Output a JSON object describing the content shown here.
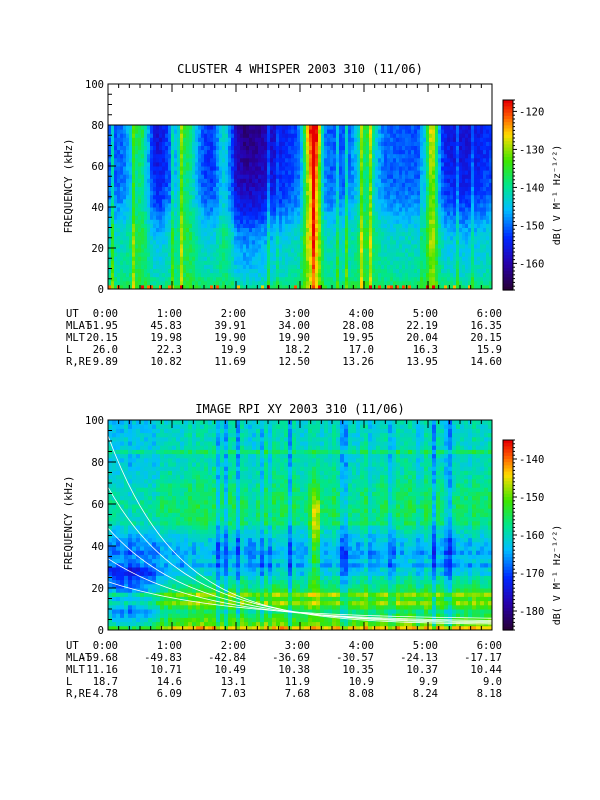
{
  "chart_data": [
    {
      "type": "heatmap",
      "title": "CLUSTER 4 WHISPER 2003 310 (11/06)",
      "ylabel": "FREQUENCY (kHz)",
      "ylim": [
        0,
        100
      ],
      "yticks": [
        "0",
        "20",
        "40",
        "60",
        "80",
        "100"
      ],
      "xlim": [
        "0:00",
        "6:00"
      ],
      "xticks": [
        "0:00",
        "1:00",
        "2:00",
        "3:00",
        "4:00",
        "5:00",
        "6:00"
      ],
      "data_max_freq_khz": 80,
      "colorbar": {
        "label": "dB( V M⁻¹ Hz⁻¹ᐟ²)",
        "range": [
          -167,
          -117
        ],
        "ticks": [
          "-120",
          "-130",
          "-140",
          "-150",
          "-160"
        ]
      },
      "ephemeris": [
        {
          "label": "UT",
          "values": [
            "0:00",
            "1:00",
            "2:00",
            "3:00",
            "4:00",
            "5:00",
            "6:00"
          ]
        },
        {
          "label": "MLAT",
          "values": [
            "51.95",
            "45.83",
            "39.91",
            "34.00",
            "28.08",
            "22.19",
            "16.35"
          ]
        },
        {
          "label": "MLT",
          "values": [
            "20.15",
            "19.98",
            "19.90",
            "19.90",
            "19.95",
            "20.04",
            "20.15"
          ]
        },
        {
          "label": "L",
          "values": [
            "26.0",
            "22.3",
            "19.9",
            "18.2",
            "17.0",
            "16.3",
            "15.9"
          ]
        },
        {
          "label": "R,RE",
          "values": [
            "9.89",
            "10.82",
            "11.69",
            "12.50",
            "13.26",
            "13.95",
            "14.60"
          ]
        }
      ]
    },
    {
      "type": "heatmap",
      "title": "IMAGE RPI XY 2003 310 (11/06)",
      "ylabel": "FREQUENCY (kHz)",
      "ylim": [
        0,
        100
      ],
      "yticks": [
        "0",
        "20",
        "40",
        "60",
        "80",
        "100"
      ],
      "xlim": [
        "0:00",
        "6:00"
      ],
      "xticks": [
        "0:00",
        "1:00",
        "2:00",
        "3:00",
        "4:00",
        "5:00",
        "6:00"
      ],
      "colorbar": {
        "label": "dB( V M⁻¹ Hz⁻¹ᐟ²)",
        "range": [
          -185,
          -135
        ],
        "ticks": [
          "-140",
          "-150",
          "-160",
          "-170",
          "-180"
        ]
      },
      "ephemeris": [
        {
          "label": "UT",
          "values": [
            "0:00",
            "1:00",
            "2:00",
            "3:00",
            "4:00",
            "5:00",
            "6:00"
          ]
        },
        {
          "label": "MLAT",
          "values": [
            "-59.68",
            "-49.83",
            "-42.84",
            "-36.69",
            "-30.57",
            "-24.13",
            "-17.17"
          ]
        },
        {
          "label": "MLT",
          "values": [
            "11.16",
            "10.71",
            "10.49",
            "10.38",
            "10.35",
            "10.37",
            "10.44"
          ]
        },
        {
          "label": "L",
          "values": [
            "18.7",
            "14.6",
            "13.1",
            "11.9",
            "10.9",
            "9.9",
            "9.0"
          ]
        },
        {
          "label": "R,RE",
          "values": [
            "4.78",
            "6.09",
            "7.03",
            "7.68",
            "8.08",
            "8.24",
            "8.18"
          ]
        }
      ]
    }
  ]
}
